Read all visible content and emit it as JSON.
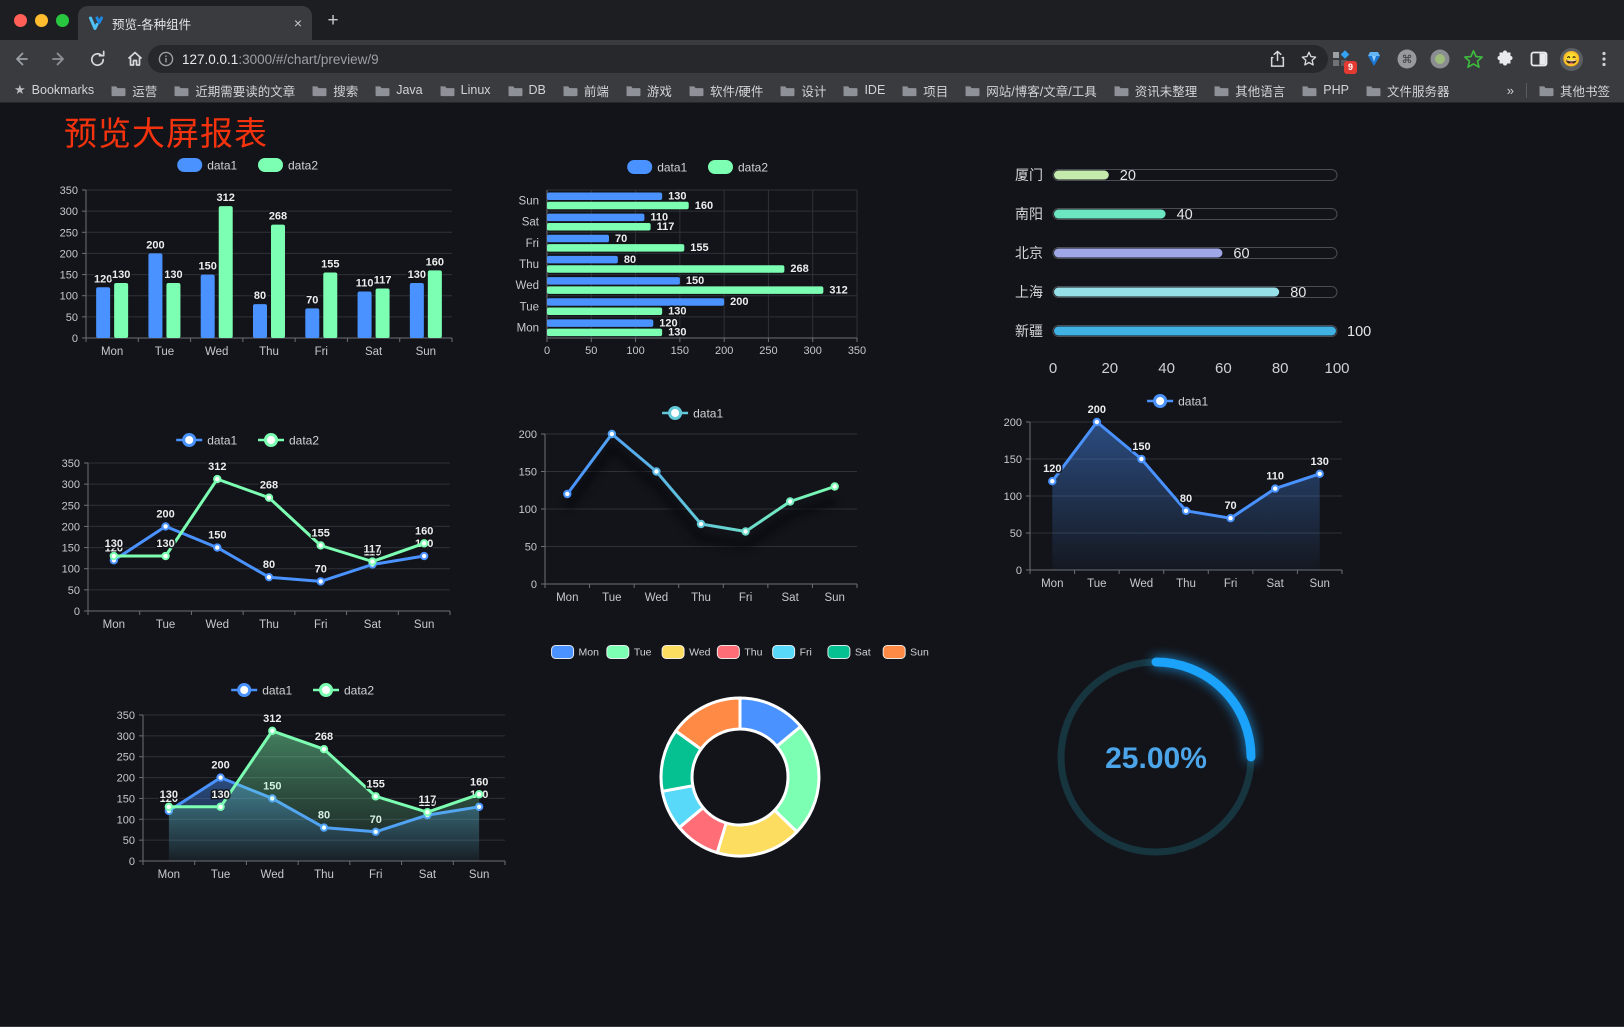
{
  "browser": {
    "tab": {
      "title": "预览-各种组件",
      "close_label": "×",
      "new_tab_label": "+"
    },
    "address": {
      "host": "127.0.0.1",
      "rest": ":3000/#/chart/preview/9"
    },
    "extension_badge": "9",
    "bookmarks_bar": {
      "label": "Bookmarks",
      "folders": [
        "运营",
        "近期需要读的文章",
        "搜索",
        "Java",
        "Linux",
        "DB",
        "前端",
        "游戏",
        "软件/硬件",
        "设计",
        "IDE",
        "项目",
        "网站/博客/文章/工具",
        "资讯未整理",
        "其他语言",
        "PHP",
        "文件服务器"
      ],
      "overflow": "»",
      "other": "其他书签"
    }
  },
  "page": {
    "title": "预览大屏报表",
    "title_color": "#f4330e",
    "background": "#131419"
  },
  "chart_data": [
    {
      "id": "grouped-bar-weekly",
      "type": "bar",
      "categories": [
        "Mon",
        "Tue",
        "Wed",
        "Thu",
        "Fri",
        "Sat",
        "Sun"
      ],
      "series": [
        {
          "name": "data1",
          "color": "#4992ff",
          "values": [
            120,
            200,
            150,
            80,
            70,
            110,
            130
          ]
        },
        {
          "name": "data2",
          "color": "#7cffb2",
          "values": [
            130,
            130,
            312,
            268,
            155,
            117,
            160
          ]
        }
      ],
      "ylim": [
        0,
        350
      ],
      "yticks": [
        0,
        50,
        100,
        150,
        200,
        250,
        300,
        350
      ],
      "legend_position": "top",
      "grid": true,
      "value_labels": true
    },
    {
      "id": "horizontal-bar-weekly",
      "type": "horizontal-bar",
      "categories": [
        "Mon",
        "Tue",
        "Wed",
        "Thu",
        "Fri",
        "Sat",
        "Sun"
      ],
      "series": [
        {
          "name": "data1",
          "color": "#4992ff",
          "values": [
            120,
            200,
            150,
            80,
            70,
            110,
            130
          ]
        },
        {
          "name": "data2",
          "color": "#7cffb2",
          "values": [
            130,
            130,
            312,
            268,
            155,
            117,
            160
          ]
        }
      ],
      "xlim": [
        0,
        350
      ],
      "xticks": [
        0,
        50,
        100,
        150,
        200,
        250,
        300,
        350
      ],
      "legend_position": "top",
      "grid": true,
      "value_labels": true
    },
    {
      "id": "city-progress-bars",
      "type": "progress-bar",
      "items": [
        {
          "label": "厦门",
          "value": 20,
          "color": "#c4ebad"
        },
        {
          "label": "南阳",
          "value": 40,
          "color": "#6be6c1"
        },
        {
          "label": "北京",
          "value": 60,
          "color": "#a0a7e6"
        },
        {
          "label": "上海",
          "value": 80,
          "color": "#96dee8"
        },
        {
          "label": "新疆",
          "value": 100,
          "color": "#3fb1e3"
        }
      ],
      "max": 100,
      "xticks": [
        0,
        20,
        40,
        60,
        80,
        100
      ]
    },
    {
      "id": "line-weekly-double",
      "type": "line",
      "categories": [
        "Mon",
        "Tue",
        "Wed",
        "Thu",
        "Fri",
        "Sat",
        "Sun"
      ],
      "series": [
        {
          "name": "data1",
          "color": "#4992ff",
          "values": [
            120,
            200,
            150,
            80,
            70,
            110,
            130
          ]
        },
        {
          "name": "data2",
          "color": "#7cffb2",
          "values": [
            130,
            130,
            312,
            268,
            155,
            117,
            160
          ]
        }
      ],
      "ylim": [
        0,
        350
      ],
      "yticks": [
        0,
        50,
        100,
        150,
        200,
        250,
        300,
        350
      ],
      "legend_position": "top",
      "grid": true,
      "value_labels": true
    },
    {
      "id": "gradient-line-weekly",
      "type": "line",
      "categories": [
        "Mon",
        "Tue",
        "Wed",
        "Thu",
        "Fri",
        "Sat",
        "Sun"
      ],
      "series": [
        {
          "name": "data1",
          "color": "#4992ff",
          "color_end": "#7cffb2",
          "values": [
            120,
            200,
            150,
            80,
            70,
            110,
            130
          ]
        }
      ],
      "ylim": [
        0,
        200
      ],
      "yticks": [
        0,
        50,
        100,
        150,
        200
      ],
      "legend_position": "top",
      "grid": true,
      "value_labels": false,
      "shadow": true
    },
    {
      "id": "area-weekly-single",
      "type": "area",
      "categories": [
        "Mon",
        "Tue",
        "Wed",
        "Thu",
        "Fri",
        "Sat",
        "Sun"
      ],
      "series": [
        {
          "name": "data1",
          "color": "#4992ff",
          "values": [
            120,
            200,
            150,
            80,
            70,
            110,
            130
          ]
        }
      ],
      "ylim": [
        0,
        200
      ],
      "yticks": [
        0,
        50,
        100,
        150,
        200
      ],
      "legend_position": "top",
      "grid": true,
      "value_labels": true
    },
    {
      "id": "area-weekly-double",
      "type": "area",
      "categories": [
        "Mon",
        "Tue",
        "Wed",
        "Thu",
        "Fri",
        "Sat",
        "Sun"
      ],
      "series": [
        {
          "name": "data1",
          "color": "#4992ff",
          "values": [
            120,
            200,
            150,
            80,
            70,
            110,
            130
          ]
        },
        {
          "name": "data2",
          "color": "#7cffb2",
          "values": [
            130,
            130,
            312,
            268,
            155,
            117,
            160
          ]
        }
      ],
      "ylim": [
        0,
        350
      ],
      "yticks": [
        0,
        50,
        100,
        150,
        200,
        250,
        300,
        350
      ],
      "legend_position": "top",
      "grid": true,
      "value_labels": true
    },
    {
      "id": "weekday-donut",
      "type": "pie",
      "donut": true,
      "legend_position": "top",
      "items": [
        {
          "label": "Mon",
          "value": 120,
          "color": "#4992ff"
        },
        {
          "label": "Tue",
          "value": 200,
          "color": "#7cffb2"
        },
        {
          "label": "Wed",
          "value": 150,
          "color": "#fddd60"
        },
        {
          "label": "Thu",
          "value": 80,
          "color": "#ff6e76"
        },
        {
          "label": "Fri",
          "value": 70,
          "color": "#58d9f9"
        },
        {
          "label": "Sat",
          "value": 110,
          "color": "#05c091"
        },
        {
          "label": "Sun",
          "value": 130,
          "color": "#ff8a45"
        }
      ]
    },
    {
      "id": "percent-gauge",
      "type": "gauge",
      "value": 25,
      "max": 100,
      "label": "25.00%",
      "color": "#1ba2fa",
      "track_color": "#17353f",
      "text_color": "#4ba5e8"
    }
  ]
}
